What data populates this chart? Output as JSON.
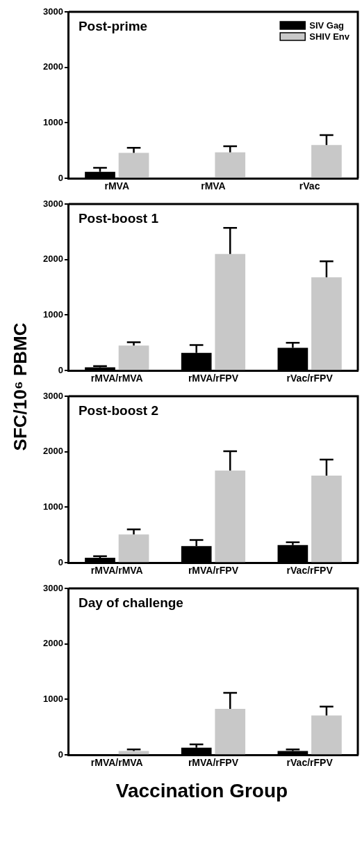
{
  "chart_data": [
    {
      "type": "bar",
      "title": "Post-prime",
      "categories": [
        "rMVA",
        "rMVA",
        "rVac"
      ],
      "ylim": [
        0,
        3000
      ],
      "yticks": [
        0,
        1000,
        2000,
        3000
      ],
      "grid": false,
      "legend": "top right",
      "series": [
        {
          "name": "SIV Gag",
          "color": "#000000",
          "values": [
            120,
            10,
            10
          ],
          "errors": [
            [
              120,
              190
            ],
            null,
            null
          ]
        },
        {
          "name": "SHIV Env",
          "color": "#c8c8c8",
          "values": [
            460,
            470,
            600
          ],
          "errors": [
            [
              460,
              550
            ],
            [
              470,
              580
            ],
            [
              600,
              780
            ]
          ]
        }
      ]
    },
    {
      "type": "bar",
      "title": "Post-boost 1",
      "categories": [
        "rMVA/rMVA",
        "rMVA/rFPV",
        "rVac/rFPV"
      ],
      "ylim": [
        0,
        3000
      ],
      "yticks": [
        0,
        1000,
        2000,
        3000
      ],
      "grid": false,
      "legend": false,
      "ylabel": "SFC/10⁶ PBMC",
      "series": [
        {
          "color": "#000000",
          "values": [
            60,
            320,
            410
          ],
          "errors": [
            [
              60,
              80
            ],
            [
              320,
              460
            ],
            [
              410,
              500
            ]
          ]
        },
        {
          "color": "#c8c8c8",
          "values": [
            450,
            2100,
            1680
          ],
          "errors": [
            [
              450,
              510
            ],
            [
              2100,
              2570
            ],
            [
              1680,
              1970
            ]
          ]
        }
      ]
    },
    {
      "type": "bar",
      "title": "Post-boost 2",
      "categories": [
        "rMVA/rMVA",
        "rMVA/rFPV",
        "rVac/rFPV"
      ],
      "ylim": [
        0,
        3000
      ],
      "yticks": [
        0,
        1000,
        2000,
        3000
      ],
      "grid": false,
      "legend": false,
      "series": [
        {
          "color": "#000000",
          "values": [
            90,
            300,
            320
          ],
          "errors": [
            [
              90,
              120
            ],
            [
              300,
              410
            ],
            [
              320,
              370
            ]
          ]
        },
        {
          "color": "#c8c8c8",
          "values": [
            510,
            1660,
            1570
          ],
          "errors": [
            [
              510,
              600
            ],
            [
              1660,
              2010
            ],
            [
              1570,
              1860
            ]
          ]
        }
      ]
    },
    {
      "type": "bar",
      "title": "Day of challenge",
      "categories": [
        "rMVA/rMVA",
        "rMVA/rFPV",
        "rVac/rFPV"
      ],
      "ylim": [
        0,
        3000
      ],
      "yticks": [
        0,
        1000,
        2000,
        3000
      ],
      "grid": false,
      "legend": false,
      "xlabel": "Vaccination Group",
      "series": [
        {
          "color": "#000000",
          "values": [
            10,
            130,
            70
          ],
          "errors": [
            null,
            [
              130,
              190
            ],
            [
              70,
              100
            ]
          ]
        },
        {
          "color": "#c8c8c8",
          "values": [
            70,
            830,
            710
          ],
          "errors": [
            [
              70,
              100
            ],
            [
              830,
              1120
            ],
            [
              710,
              870
            ]
          ]
        }
      ]
    }
  ]
}
